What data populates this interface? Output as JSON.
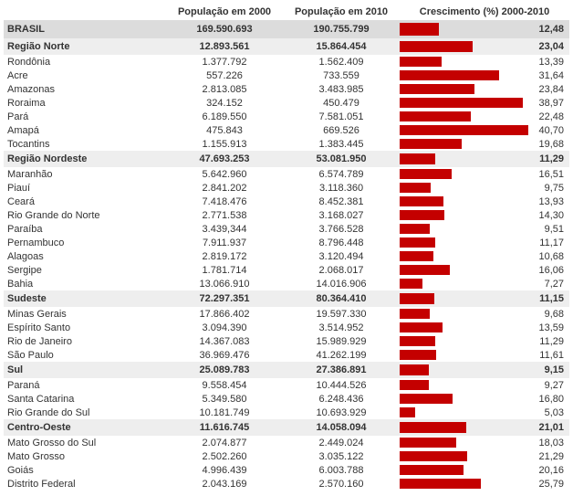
{
  "headers": {
    "name": "",
    "pop2000": "População em 2000",
    "pop2010": "População em 2010",
    "growth": "Crescimento (%) 2000-2010"
  },
  "bar_color": "#c40000",
  "max_pct": 42,
  "rows": [
    {
      "type": "total",
      "name": "BRASIL",
      "pop2000": "169.590.693",
      "pop2010": "190.755.799",
      "pct": "12,48",
      "val": 12.48
    },
    {
      "type": "region",
      "name": "Região Norte",
      "pop2000": "12.893.561",
      "pop2010": "15.864.454",
      "pct": "23,04",
      "val": 23.04
    },
    {
      "type": "state",
      "name": "Rondônia",
      "pop2000": "1.377.792",
      "pop2010": "1.562.409",
      "pct": "13,39",
      "val": 13.39
    },
    {
      "type": "state",
      "name": "Acre",
      "pop2000": "557.226",
      "pop2010": "733.559",
      "pct": "31,64",
      "val": 31.64
    },
    {
      "type": "state",
      "name": "Amazonas",
      "pop2000": "2.813.085",
      "pop2010": "3.483.985",
      "pct": "23,84",
      "val": 23.84
    },
    {
      "type": "state",
      "name": "Roraima",
      "pop2000": "324.152",
      "pop2010": "450.479",
      "pct": "38,97",
      "val": 38.97
    },
    {
      "type": "state",
      "name": "Pará",
      "pop2000": "6.189.550",
      "pop2010": "7.581.051",
      "pct": "22,48",
      "val": 22.48
    },
    {
      "type": "state",
      "name": "Amapá",
      "pop2000": "475.843",
      "pop2010": "669.526",
      "pct": "40,70",
      "val": 40.7
    },
    {
      "type": "state",
      "name": "Tocantins",
      "pop2000": "1.155.913",
      "pop2010": "1.383.445",
      "pct": "19,68",
      "val": 19.68
    },
    {
      "type": "region",
      "name": "Região Nordeste",
      "pop2000": "47.693.253",
      "pop2010": "53.081.950",
      "pct": "11,29",
      "val": 11.29
    },
    {
      "type": "state",
      "name": "Maranhão",
      "pop2000": "5.642.960",
      "pop2010": "6.574.789",
      "pct": "16,51",
      "val": 16.51
    },
    {
      "type": "state",
      "name": "Piauí",
      "pop2000": "2.841.202",
      "pop2010": "3.118.360",
      "pct": "9,75",
      "val": 9.75
    },
    {
      "type": "state",
      "name": "Ceará",
      "pop2000": "7.418.476",
      "pop2010": "8.452.381",
      "pct": "13,93",
      "val": 13.93
    },
    {
      "type": "state",
      "name": "Rio Grande do Norte",
      "pop2000": "2.771.538",
      "pop2010": "3.168.027",
      "pct": "14,30",
      "val": 14.3
    },
    {
      "type": "state",
      "name": "Paraíba",
      "pop2000": "3.439,344",
      "pop2010": "3.766.528",
      "pct": "9,51",
      "val": 9.51
    },
    {
      "type": "state",
      "name": "Pernambuco",
      "pop2000": "7.911.937",
      "pop2010": "8.796.448",
      "pct": "11,17",
      "val": 11.17
    },
    {
      "type": "state",
      "name": "Alagoas",
      "pop2000": "2.819.172",
      "pop2010": "3.120.494",
      "pct": "10,68",
      "val": 10.68
    },
    {
      "type": "state",
      "name": "Sergipe",
      "pop2000": "1.781.714",
      "pop2010": "2.068.017",
      "pct": "16,06",
      "val": 16.06
    },
    {
      "type": "state",
      "name": "Bahia",
      "pop2000": "13.066.910",
      "pop2010": "14.016.906",
      "pct": "7,27",
      "val": 7.27
    },
    {
      "type": "region",
      "name": "Sudeste",
      "pop2000": "72.297.351",
      "pop2010": "80.364.410",
      "pct": "11,15",
      "val": 11.15
    },
    {
      "type": "state",
      "name": "Minas Gerais",
      "pop2000": "17.866.402",
      "pop2010": "19.597.330",
      "pct": "9,68",
      "val": 9.68
    },
    {
      "type": "state",
      "name": "Espírito Santo",
      "pop2000": "3.094.390",
      "pop2010": "3.514.952",
      "pct": "13,59",
      "val": 13.59
    },
    {
      "type": "state",
      "name": "Rio de Janeiro",
      "pop2000": "14.367.083",
      "pop2010": "15.989.929",
      "pct": "11,29",
      "val": 11.29
    },
    {
      "type": "state",
      "name": "São Paulo",
      "pop2000": "36.969.476",
      "pop2010": "41.262.199",
      "pct": "11,61",
      "val": 11.61
    },
    {
      "type": "region",
      "name": "Sul",
      "pop2000": "25.089.783",
      "pop2010": "27.386.891",
      "pct": "9,15",
      "val": 9.15
    },
    {
      "type": "state",
      "name": "Paraná",
      "pop2000": "9.558.454",
      "pop2010": "10.444.526",
      "pct": "9,27",
      "val": 9.27
    },
    {
      "type": "state",
      "name": "Santa Catarina",
      "pop2000": "5.349.580",
      "pop2010": "6.248.436",
      "pct": "16,80",
      "val": 16.8
    },
    {
      "type": "state",
      "name": "Rio Grande do Sul",
      "pop2000": "10.181.749",
      "pop2010": "10.693.929",
      "pct": "5,03",
      "val": 5.03
    },
    {
      "type": "region",
      "name": "Centro-Oeste",
      "pop2000": "11.616.745",
      "pop2010": "14.058.094",
      "pct": "21,01",
      "val": 21.01
    },
    {
      "type": "state",
      "name": "Mato Grosso do Sul",
      "pop2000": "2.074.877",
      "pop2010": "2.449.024",
      "pct": "18,03",
      "val": 18.03
    },
    {
      "type": "state",
      "name": "Mato Grosso",
      "pop2000": "2.502.260",
      "pop2010": "3.035.122",
      "pct": "21,29",
      "val": 21.29
    },
    {
      "type": "state",
      "name": "Goiás",
      "pop2000": "4.996.439",
      "pop2010": "6.003.788",
      "pct": "20,16",
      "val": 20.16
    },
    {
      "type": "state",
      "name": "Distrito Federal",
      "pop2000": "2.043.169",
      "pop2010": "2.570.160",
      "pct": "25,79",
      "val": 25.79
    }
  ]
}
